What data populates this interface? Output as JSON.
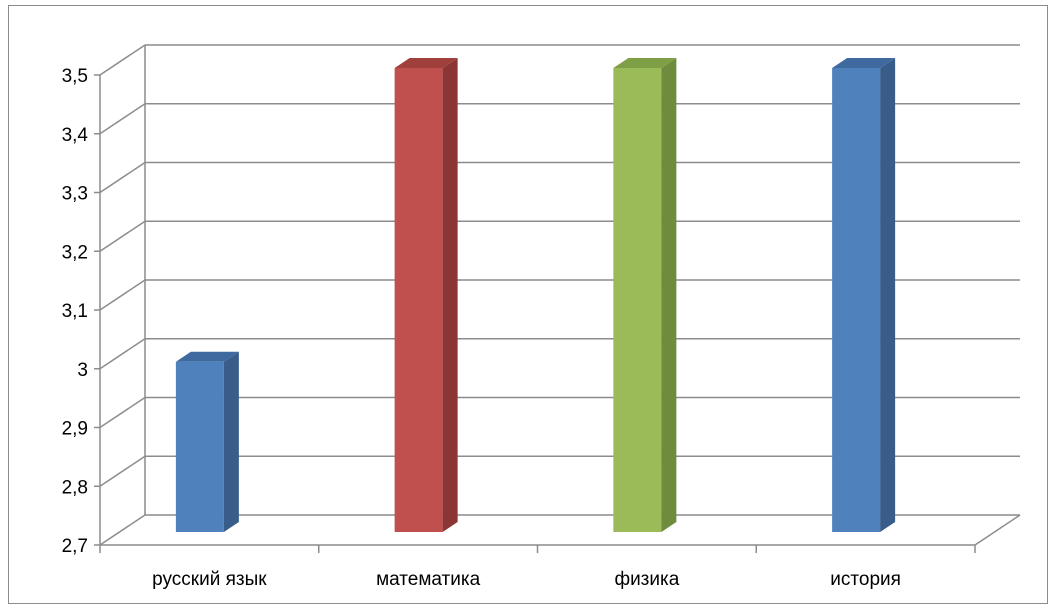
{
  "chart_data": {
    "type": "bar",
    "categories": [
      "русский язык",
      "математика",
      "физика",
      "история"
    ],
    "values": [
      3.0,
      3.5,
      3.5,
      3.5
    ],
    "ylim": [
      2.7,
      3.5
    ],
    "yticks": [
      "2,7",
      "2,8",
      "2,9",
      "3",
      "3,1",
      "3,2",
      "3,3",
      "3,4",
      "3,5"
    ],
    "yticks_values": [
      2.7,
      2.8,
      2.9,
      3.0,
      3.1,
      3.2,
      3.3,
      3.4,
      3.5
    ],
    "grid": true,
    "style": "3d-column",
    "bar_colors": [
      {
        "front": "#4f81bd",
        "side": "#385d8a",
        "top": "#3f6aa0"
      },
      {
        "front": "#c0504d",
        "side": "#8b3634",
        "top": "#a0403d"
      },
      {
        "front": "#9bbb59",
        "side": "#6f8b3d",
        "top": "#7f9f47"
      },
      {
        "front": "#4f81bd",
        "side": "#385d8a",
        "top": "#3f6aa0"
      }
    ],
    "title": "",
    "xlabel": "",
    "ylabel": ""
  }
}
